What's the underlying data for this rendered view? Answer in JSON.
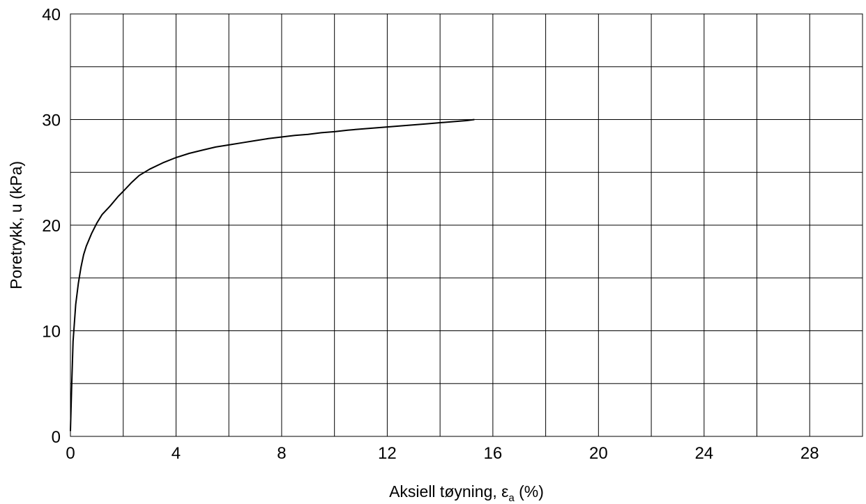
{
  "chart_data": {
    "type": "line",
    "title": "",
    "xlabel": "Aksiell tøyning, ε",
    "xlabel_subscript": "a",
    "xlabel_suffix": " (%)",
    "ylabel": "Poretrykk, u (kPa)",
    "xlim": [
      0,
      30
    ],
    "ylim": [
      0,
      40
    ],
    "x_ticks": [
      0,
      4,
      8,
      12,
      16,
      20,
      24,
      28
    ],
    "y_ticks": [
      0,
      10,
      20,
      30,
      40
    ],
    "grid": true,
    "x_grid_step": 2,
    "y_grid_step": 5,
    "series": [
      {
        "color": "#000000",
        "x": [
          0,
          0.05,
          0.1,
          0.2,
          0.3,
          0.4,
          0.5,
          0.6,
          0.8,
          1.0,
          1.2,
          1.5,
          1.8,
          2.0,
          2.3,
          2.6,
          3.0,
          3.5,
          4.0,
          4.5,
          5.0,
          5.5,
          6.0,
          6.5,
          7.0,
          7.5,
          8.0,
          8.5,
          9.0,
          9.5,
          10.0,
          10.5,
          11.0,
          11.5,
          12.0,
          12.5,
          13.0,
          13.5,
          14.0,
          14.5,
          15.0,
          15.3
        ],
        "y": [
          0.5,
          5,
          9,
          12.5,
          14.5,
          16,
          17.2,
          18,
          19.2,
          20.2,
          21,
          21.8,
          22.7,
          23.2,
          24,
          24.7,
          25.3,
          25.9,
          26.4,
          26.8,
          27.1,
          27.4,
          27.6,
          27.8,
          28,
          28.2,
          28.35,
          28.5,
          28.6,
          28.75,
          28.85,
          29,
          29.1,
          29.2,
          29.3,
          29.4,
          29.5,
          29.6,
          29.7,
          29.8,
          29.9,
          30
        ]
      }
    ]
  }
}
